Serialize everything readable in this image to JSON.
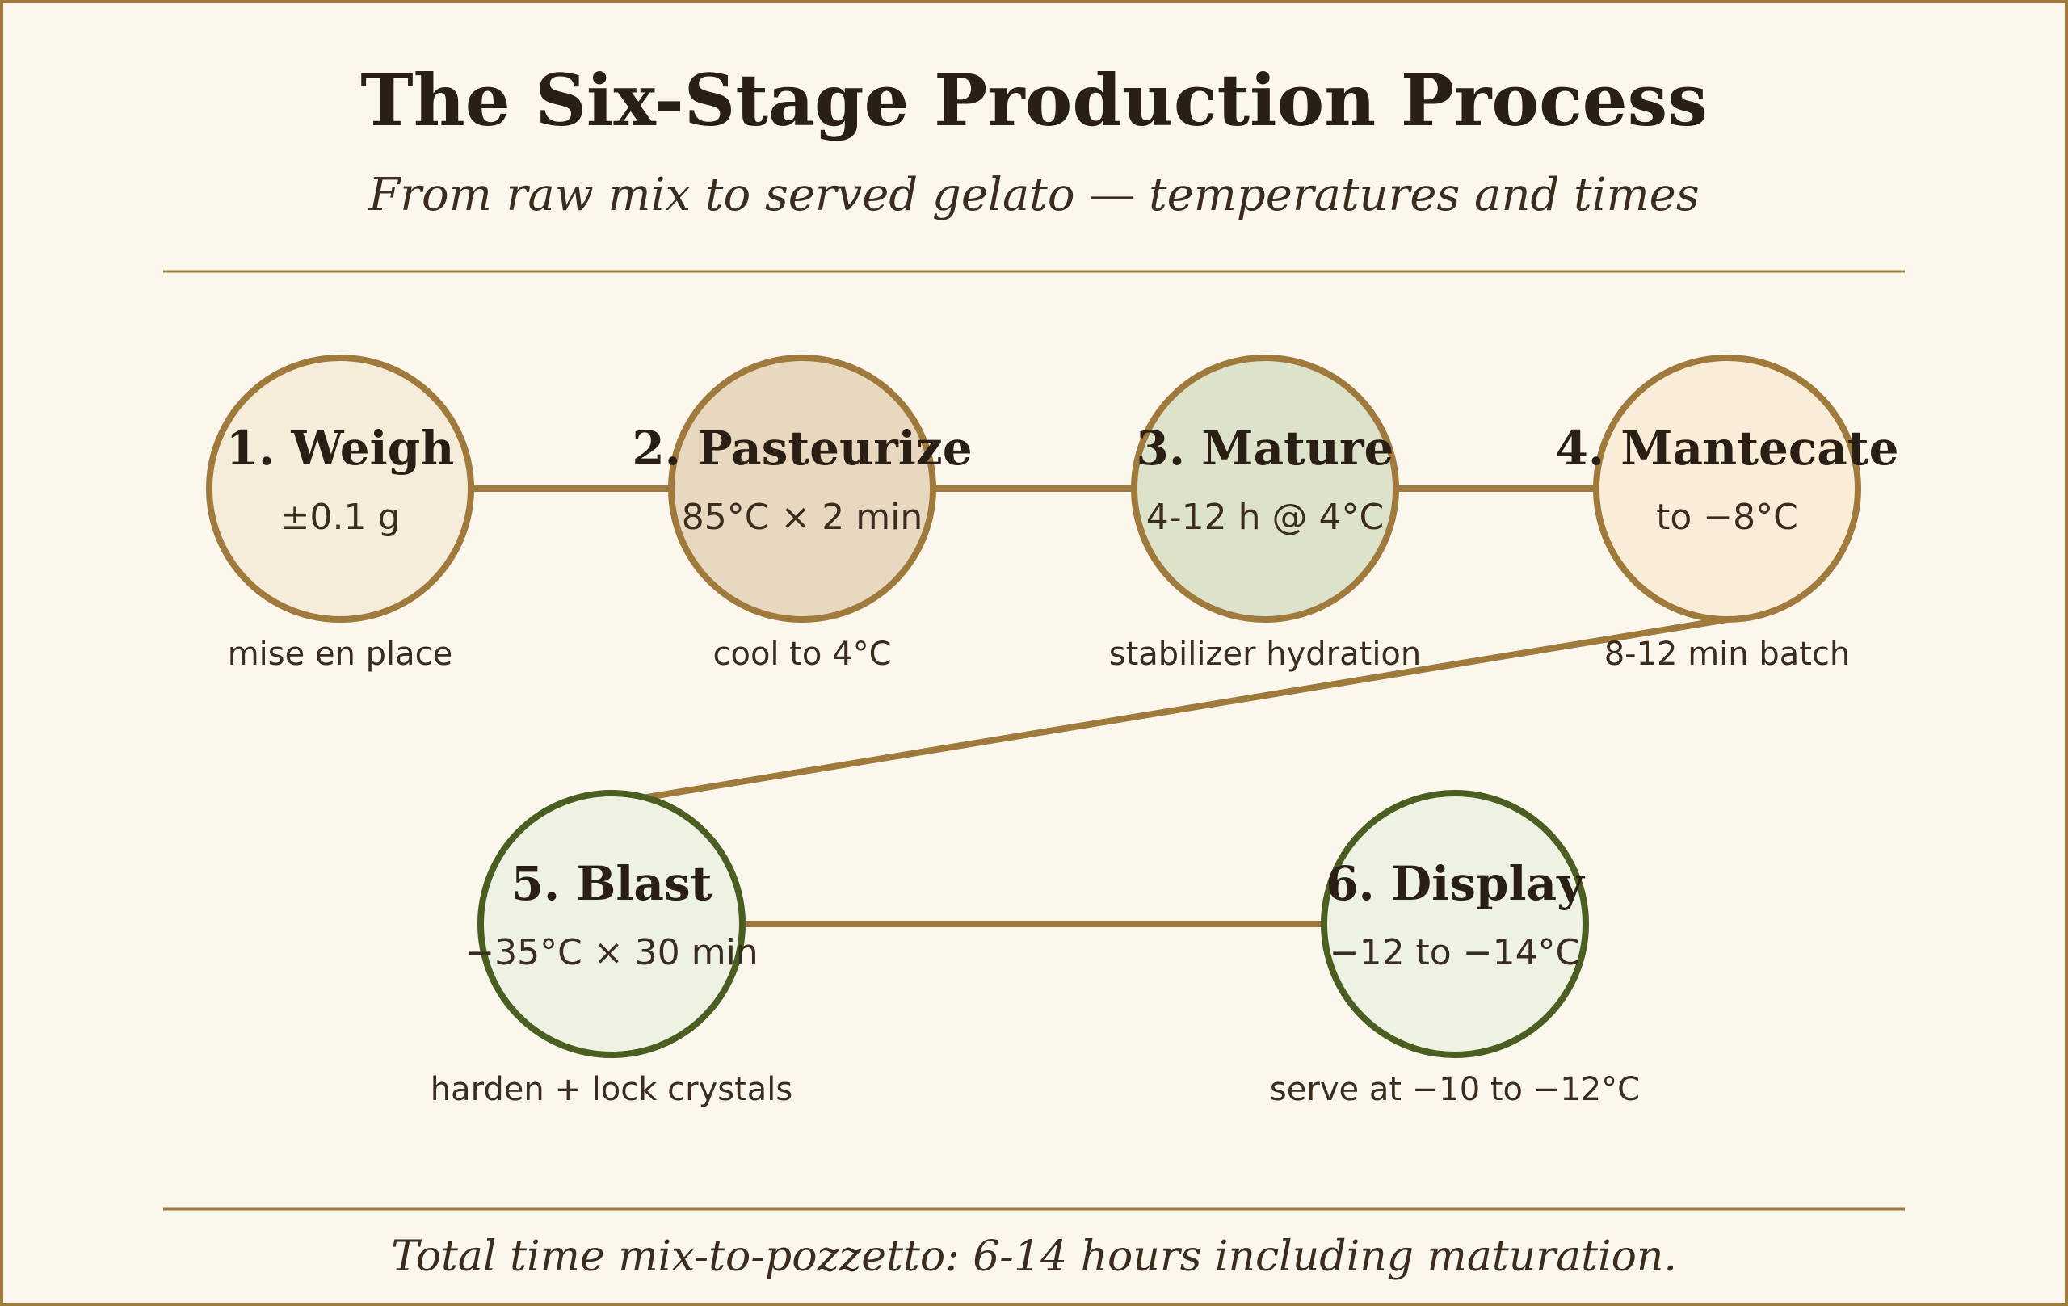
{
  "title": "The Six-Stage Production Process",
  "subtitle": "From raw mix to served gelato — temperatures and times",
  "footer": "Total time mix-to-pozzetto: 6-14 hours including maturation.",
  "colors": {
    "background": "#fbf7ed",
    "border": "#a07a3c",
    "arrow": "#a07a3c",
    "text_dark": "#2a1f14",
    "text_mid": "#3a2c1e",
    "ring_warm": "#a07a3c",
    "ring_cold": "#4a5e22"
  },
  "stages": [
    {
      "label": "1. Weigh",
      "param": "±0.1 g",
      "note": "mise en place",
      "fill": "#f5ecd9",
      "ring": "#a07a3c"
    },
    {
      "label": "2. Pasteurize",
      "param": "85°C × 2 min",
      "note": "cool to 4°C",
      "fill": "#e8d8bf",
      "ring": "#a07a3c"
    },
    {
      "label": "3. Mature",
      "param": "4-12 h @ 4°C",
      "note": "stabilizer hydration",
      "fill": "#dde2cb",
      "ring": "#a07a3c"
    },
    {
      "label": "4. Mantecate",
      "param": "to −8°C",
      "note": "8-12 min batch",
      "fill": "#faedd8",
      "ring": "#a07a3c"
    },
    {
      "label": "5. Blast",
      "param": "−35°C × 30 min",
      "note": "harden + lock crystals",
      "fill": "#eef2e3",
      "ring": "#4a5e22"
    },
    {
      "label": "6. Display",
      "param": "−12 to −14°C",
      "note": "serve at −10 to −12°C",
      "fill": "#eef2e3",
      "ring": "#4a5e22"
    }
  ],
  "flow": [
    [
      0,
      1
    ],
    [
      1,
      2
    ],
    [
      2,
      3
    ],
    [
      3,
      4
    ],
    [
      4,
      5
    ]
  ]
}
